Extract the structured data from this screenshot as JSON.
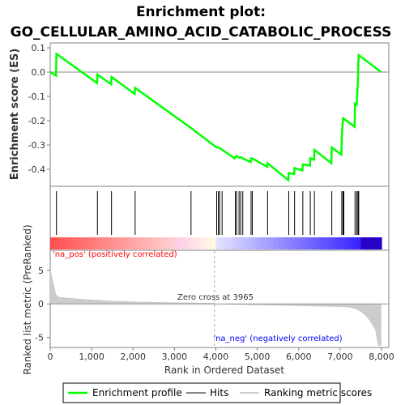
{
  "chart_data": {
    "type": "line",
    "title_line1": "Enrichment plot:",
    "title_line2": "GO_CELLULAR_AMINO_ACID_CATABOLIC_PROCESS",
    "xlabel": "Rank in Ordered Dataset",
    "ylabel_top": "Enrichment score (ES)",
    "ylabel_bottom": "Ranked list metric (PreRanked)",
    "xlim": [
      0,
      8000
    ],
    "x_ticks": [
      0,
      1000,
      2000,
      3000,
      4000,
      5000,
      6000,
      7000,
      8000
    ],
    "es_ylim": [
      -0.47,
      0.12
    ],
    "es_ticks": [
      0.1,
      0.0,
      -0.1,
      -0.2,
      -0.3,
      -0.4
    ],
    "metric_ylim": [
      -6.5,
      8
    ],
    "metric_ticks": [
      5,
      0,
      -5
    ],
    "zero_cross_label": "Zero cross at 3965",
    "zero_cross": 3965,
    "pos_label": "'na_pos' (positively correlated)",
    "neg_label": "'na_neg' (negatively correlated)",
    "colors": {
      "es_line": "#00ff00",
      "hits": "#000000",
      "metric": "#cccccc",
      "pos_label": "#ff0000",
      "neg_label": "#0000ff",
      "axis": "#808080"
    },
    "hits": [
      150,
      1140,
      1480,
      2050,
      3400,
      4020,
      4060,
      4090,
      4150,
      4470,
      4500,
      4560,
      4600,
      4650,
      4850,
      4880,
      5250,
      5760,
      5900,
      6100,
      6280,
      6380,
      6800,
      7040,
      7070,
      7090,
      7360,
      7400,
      7430,
      7440,
      7450
    ],
    "es_curve": {
      "x": [
        0,
        140,
        150,
        1130,
        1140,
        1470,
        1480,
        2040,
        2050,
        3400,
        4020,
        4060,
        4090,
        4150,
        4460,
        4470,
        4500,
        4560,
        4600,
        4650,
        4840,
        4850,
        4880,
        5240,
        5250,
        5750,
        5760,
        5890,
        5900,
        6090,
        6100,
        6270,
        6280,
        6370,
        6380,
        6790,
        6800,
        7030,
        7040,
        7070,
        7090,
        7350,
        7360,
        7400,
        7430,
        7440,
        7450,
        7990
      ],
      "y": [
        0.0,
        -0.015,
        0.075,
        -0.045,
        -0.01,
        -0.05,
        -0.02,
        -0.09,
        -0.065,
        -0.23,
        -0.31,
        -0.31,
        -0.312,
        -0.32,
        -0.355,
        -0.35,
        -0.345,
        -0.352,
        -0.35,
        -0.355,
        -0.37,
        -0.355,
        -0.355,
        -0.39,
        -0.375,
        -0.445,
        -0.415,
        -0.42,
        -0.395,
        -0.405,
        -0.38,
        -0.385,
        -0.355,
        -0.36,
        -0.32,
        -0.375,
        -0.31,
        -0.34,
        -0.27,
        -0.19,
        -0.192,
        -0.225,
        -0.13,
        -0.135,
        -0.035,
        0.035,
        0.07,
        0.0
      ]
    },
    "legend": [
      {
        "label": "Enrichment profile",
        "color": "#00ff00"
      },
      {
        "label": "Hits",
        "color": "#000000"
      },
      {
        "label": "Ranking metric scores",
        "color": "#cccccc"
      }
    ]
  }
}
